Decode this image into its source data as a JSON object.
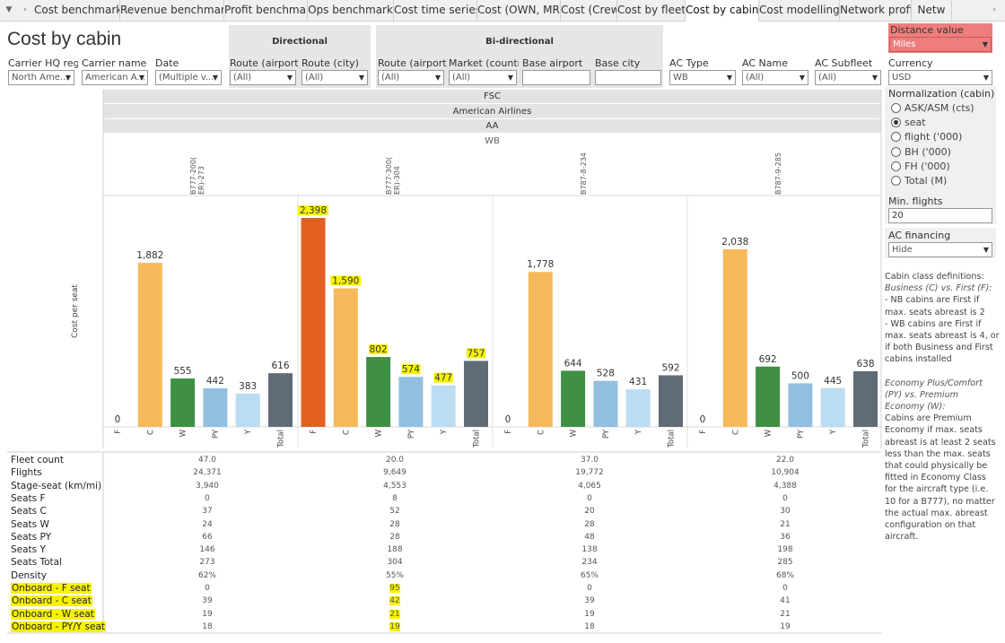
{
  "tabs": {
    "nav_down": "▼",
    "nav_left": "‹",
    "nav_right": "›",
    "items": [
      "Cost benchmark",
      "Revenue benchmark",
      "Profit benchmark",
      "Ops benchmark",
      "Cost time series",
      "Cost (OWN, MRO)",
      "Cost (Crew)",
      "Cost by fleet",
      "Cost by cabin",
      "Cost modelling",
      "Network profit",
      "Netw"
    ],
    "active": "Cost by cabin"
  },
  "page_title": "Cost by cabin",
  "groups": {
    "directional": "Directional",
    "bidirectional": "Bi-directional"
  },
  "filters": {
    "carrier_hq_region": {
      "label": "Carrier HQ reg...",
      "value": "North Ame..."
    },
    "carrier_name": {
      "label": "Carrier name",
      "value": "American A..."
    },
    "date": {
      "label": "Date",
      "value": "(Multiple v..."
    },
    "dir_route_airport": {
      "label": "Route (airport)",
      "value": "(All)"
    },
    "dir_route_city": {
      "label": "Route (city)",
      "value": "(All)"
    },
    "bi_route_airport": {
      "label": "Route (airport)",
      "value": "(All)"
    },
    "market_country": {
      "label": "Market (countr...",
      "value": "(All)"
    },
    "base_airport": {
      "label": "Base airport",
      "value": ""
    },
    "base_city": {
      "label": "Base city",
      "value": ""
    },
    "ac_type": {
      "label": "AC Type",
      "value": "WB"
    },
    "ac_name": {
      "label": "AC Name",
      "value": "(All)"
    },
    "ac_subfleet": {
      "label": "AC Subfleet",
      "value": "(All)"
    }
  },
  "right_panel": {
    "distance_value": {
      "label": "Distance value",
      "value": "Miles"
    },
    "currency": {
      "label": "Currency",
      "value": "USD"
    },
    "normalization": {
      "label": "Normalization (cabin)",
      "options": [
        "ASK/ASM (cts)",
        "seat",
        "flight ('000)",
        "BH ('000)",
        "FH ('000)",
        "Total (M)"
      ],
      "selected": "seat"
    },
    "min_flights": {
      "label": "Min. flights",
      "value": "20"
    },
    "ac_financing": {
      "label": "AC financing",
      "value": "Hide"
    },
    "definitions": {
      "title": "Cabin class definitions:",
      "bc_heading": "Business (C) vs. First (F):",
      "bc_line1": "- NB cabins are First if max. seats abreast is 2",
      "bc_line2": "- WB cabins are First if max. seats abreast is 4, or if both Business and First cabins installed",
      "py_heading": "Economy Plus/Comfort (PY) vs. Premium Economy (W):",
      "py_text": "Cabins are Premium Economy if max. seats abreast is at least 2 seats less than the max. seats that could physically be fitted in Economy Class for the aircraft type (i.e. 10 for a B777), no matter the actual max. abreast configuration on that aircraft."
    }
  },
  "header_band": {
    "model": "FSC",
    "carrier": "American Airlines",
    "code": "AA",
    "type": "WB"
  },
  "chart_data": {
    "type": "bar",
    "ylabel": "Cost per seat",
    "cabins": [
      "F",
      "C",
      "W",
      "PY",
      "Y",
      "Total"
    ],
    "colors": {
      "F": "#e2601f",
      "C": "#f6b95a",
      "W": "#3f8f45",
      "PY": "#92bfe0",
      "Y": "#bcdcf2",
      "Total": "#5f6c78"
    },
    "series": [
      {
        "name": "B777-200(ER)-273",
        "label_lines": [
          "B777-200(",
          "ER)-273"
        ],
        "values": [
          0,
          1882,
          555,
          442,
          383,
          616
        ],
        "label_text": [
          "0",
          "1,882",
          "555",
          "442",
          "383",
          "616"
        ],
        "highlight": [
          false,
          false,
          false,
          false,
          false,
          false
        ]
      },
      {
        "name": "B777-300(ER)-304",
        "label_lines": [
          "B777-300(",
          "ER)-304"
        ],
        "values": [
          2398,
          1590,
          802,
          574,
          477,
          757
        ],
        "label_text": [
          "2,398",
          "1,590",
          "802",
          "574",
          "477",
          "757"
        ],
        "highlight": [
          true,
          true,
          true,
          true,
          true,
          true
        ]
      },
      {
        "name": "B787-8-234",
        "label_lines": [
          "B787-8-234"
        ],
        "values": [
          0,
          1778,
          644,
          528,
          431,
          592
        ],
        "label_text": [
          "0",
          "1,778",
          "644",
          "528",
          "431",
          "592"
        ],
        "highlight": [
          false,
          false,
          false,
          false,
          false,
          false
        ]
      },
      {
        "name": "B787-9-285",
        "label_lines": [
          "B787-9-285"
        ],
        "values": [
          0,
          2038,
          692,
          500,
          445,
          638
        ],
        "label_text": [
          "0",
          "2,038",
          "692",
          "500",
          "445",
          "638"
        ],
        "highlight": [
          false,
          false,
          false,
          false,
          false,
          false
        ]
      }
    ],
    "ylim": [
      0,
      2398
    ]
  },
  "table": {
    "rows": [
      {
        "label": "Fleet count",
        "values": [
          "47.0",
          "20.0",
          "37.0",
          "22.0"
        ],
        "highlight": false
      },
      {
        "label": "Flights",
        "values": [
          "24,371",
          "9,649",
          "19,772",
          "10,904"
        ],
        "highlight": false
      },
      {
        "label": "Stage-seat (km/mi)",
        "values": [
          "3,940",
          "4,553",
          "4,065",
          "4,388"
        ],
        "highlight": false
      },
      {
        "label": "Seats F",
        "values": [
          "0",
          "8",
          "0",
          "0"
        ],
        "highlight": false
      },
      {
        "label": "Seats C",
        "values": [
          "37",
          "52",
          "20",
          "30"
        ],
        "highlight": false
      },
      {
        "label": "Seats W",
        "values": [
          "24",
          "28",
          "28",
          "21"
        ],
        "highlight": false
      },
      {
        "label": "Seats PY",
        "values": [
          "66",
          "28",
          "48",
          "36"
        ],
        "highlight": false
      },
      {
        "label": "Seats Y",
        "values": [
          "146",
          "188",
          "138",
          "198"
        ],
        "highlight": false
      },
      {
        "label": "Seats Total",
        "values": [
          "273",
          "304",
          "234",
          "285"
        ],
        "highlight": false
      },
      {
        "label": "Density",
        "values": [
          "62%",
          "55%",
          "65%",
          "68%"
        ],
        "highlight": false
      },
      {
        "label": "Onboard - F seat",
        "values": [
          "0",
          "95",
          "0",
          "0"
        ],
        "highlight": true
      },
      {
        "label": "Onboard - C seat",
        "values": [
          "39",
          "42",
          "39",
          "41"
        ],
        "highlight": true
      },
      {
        "label": "Onboard - W seat",
        "values": [
          "19",
          "21",
          "19",
          "21"
        ],
        "highlight": true
      },
      {
        "label": "Onboard - PY/Y seat",
        "values": [
          "18",
          "19",
          "18",
          "19"
        ],
        "highlight": true
      }
    ]
  },
  "colors": {
    "highlight": "#f7f300",
    "distance_box": "#ef7d7d",
    "band": "#e3e3e3",
    "group_box": "#e6e6e6"
  }
}
